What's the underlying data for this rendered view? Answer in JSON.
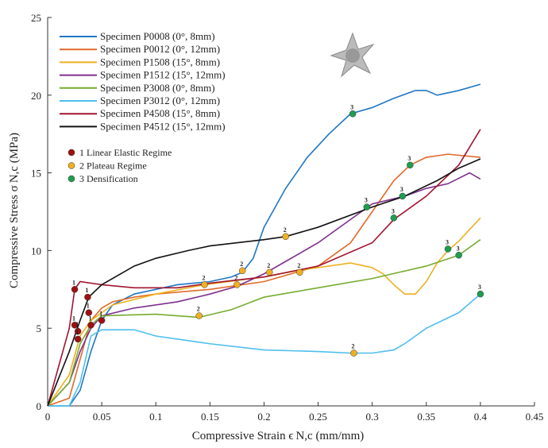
{
  "chart_data": {
    "type": "line",
    "xlabel": "Compressive Strain ϵ N,c (mm/mm)",
    "ylabel": "Compressive Stress σ N,c (MPa)",
    "xlim": [
      0,
      0.45
    ],
    "ylim": [
      0,
      25
    ],
    "xticks": [
      0,
      0.05,
      0.1,
      0.15,
      0.2,
      0.25,
      0.3,
      0.35,
      0.4,
      0.45
    ],
    "yticks": [
      0,
      5,
      10,
      15,
      20,
      25
    ],
    "series": [
      {
        "name": "Specimen P0008 (0°, 8mm)",
        "color": "#1f77c4",
        "x": [
          0,
          0.02,
          0.03,
          0.04,
          0.05,
          0.06,
          0.08,
          0.1,
          0.12,
          0.15,
          0.17,
          0.18,
          0.19,
          0.2,
          0.22,
          0.24,
          0.26,
          0.28,
          0.3,
          0.32,
          0.34,
          0.35,
          0.36,
          0.38,
          0.4
        ],
        "values": [
          0,
          0,
          1,
          3.5,
          5.5,
          6.5,
          7.2,
          7.5,
          7.8,
          8.0,
          8.3,
          8.6,
          9.5,
          11.5,
          14,
          16,
          17.5,
          18.8,
          19.2,
          19.8,
          20.3,
          20.3,
          20.0,
          20.3,
          20.7
        ]
      },
      {
        "name": "Specimen P0012 (0°, 12mm)",
        "color": "#e06a2a",
        "x": [
          0,
          0.02,
          0.03,
          0.04,
          0.05,
          0.06,
          0.08,
          0.1,
          0.15,
          0.2,
          0.25,
          0.28,
          0.3,
          0.32,
          0.335,
          0.35,
          0.37,
          0.4
        ],
        "values": [
          0,
          0.5,
          3,
          5.5,
          6.3,
          6.7,
          7.0,
          7.2,
          7.5,
          8.0,
          9.0,
          10.5,
          12.5,
          14.5,
          15.5,
          16.0,
          16.2,
          16.0
        ]
      },
      {
        "name": "Specimen P1508 (15°, 8mm)",
        "color": "#edb120",
        "x": [
          0,
          0.02,
          0.03,
          0.04,
          0.06,
          0.1,
          0.145,
          0.2,
          0.23,
          0.26,
          0.28,
          0.3,
          0.31,
          0.32,
          0.33,
          0.34,
          0.35,
          0.36,
          0.37,
          0.38,
          0.4
        ],
        "values": [
          0,
          2,
          4.5,
          5.5,
          6.5,
          7.2,
          7.8,
          8.3,
          8.7,
          9.0,
          9.2,
          8.9,
          8.5,
          7.8,
          7.2,
          7.2,
          8.0,
          9.2,
          10.0,
          10.6,
          12.1
        ]
      },
      {
        "name": "Specimen P1512 (15°, 12mm)",
        "color": "#7e2f8e",
        "x": [
          0,
          0.02,
          0.03,
          0.04,
          0.05,
          0.08,
          0.12,
          0.15,
          0.175,
          0.2,
          0.25,
          0.28,
          0.3,
          0.33,
          0.35,
          0.37,
          0.39,
          0.4
        ],
        "values": [
          0,
          1.5,
          3.5,
          5.0,
          5.8,
          6.3,
          6.7,
          7.2,
          7.7,
          8.5,
          10.5,
          12.0,
          13.0,
          13.5,
          14.0,
          14.3,
          15.0,
          14.6
        ]
      },
      {
        "name": "Specimen P3008 (0°, 8mm)",
        "color": "#77ac30",
        "x": [
          0,
          0.02,
          0.03,
          0.04,
          0.05,
          0.1,
          0.14,
          0.17,
          0.2,
          0.25,
          0.3,
          0.35,
          0.38,
          0.4
        ],
        "values": [
          0,
          1.5,
          4.0,
          5.2,
          5.8,
          5.9,
          5.7,
          6.2,
          7.0,
          7.6,
          8.2,
          9.0,
          9.7,
          10.7
        ]
      },
      {
        "name": "Specimen P3012 (0°, 12mm)",
        "color": "#4dbeee",
        "x": [
          0,
          0.02,
          0.03,
          0.04,
          0.05,
          0.08,
          0.1,
          0.15,
          0.2,
          0.25,
          0.28,
          0.3,
          0.32,
          0.33,
          0.35,
          0.38,
          0.4
        ],
        "values": [
          0,
          0,
          1.5,
          4.5,
          4.9,
          4.9,
          4.5,
          4.0,
          3.6,
          3.5,
          3.4,
          3.4,
          3.6,
          4.0,
          5.0,
          6.0,
          7.2
        ]
      },
      {
        "name": "Specimen P4508 (15°, 8mm)",
        "color": "#a2142f",
        "x": [
          0,
          0.02,
          0.025,
          0.03,
          0.05,
          0.08,
          0.12,
          0.15,
          0.2,
          0.25,
          0.3,
          0.32,
          0.35,
          0.38,
          0.4
        ],
        "values": [
          0,
          5,
          7.5,
          8.0,
          7.8,
          7.6,
          7.6,
          7.9,
          8.3,
          9.0,
          10.5,
          12.0,
          13.5,
          15.5,
          17.8
        ]
      },
      {
        "name": "Specimen P4512 (15°, 12mm)",
        "color": "#111111",
        "x": [
          0,
          0.02,
          0.03,
          0.038,
          0.05,
          0.08,
          0.1,
          0.13,
          0.15,
          0.2,
          0.22,
          0.25,
          0.3,
          0.33,
          0.36,
          0.38,
          0.4
        ],
        "values": [
          0,
          3.5,
          5.5,
          7.0,
          7.8,
          9.0,
          9.5,
          10.0,
          10.3,
          10.7,
          10.9,
          11.5,
          12.8,
          13.5,
          14.5,
          15.3,
          15.9
        ]
      }
    ],
    "regimes": [
      {
        "label": "1",
        "name": "Linear Elastic Regime",
        "color": "#a01010",
        "x": [
          0.025,
          0.037,
          0.025,
          0.038,
          0.04,
          0.028,
          0.05,
          0.028
        ],
        "y": [
          7.5,
          7.0,
          5.2,
          6.0,
          5.2,
          4.8,
          5.5,
          4.3
        ]
      },
      {
        "label": "2",
        "name": "Plateau Regime",
        "color": "#f0b020",
        "x": [
          0.14,
          0.145,
          0.175,
          0.18,
          0.205,
          0.22,
          0.233,
          0.283
        ],
        "y": [
          5.8,
          7.8,
          7.8,
          8.7,
          8.6,
          10.9,
          8.6,
          3.4
        ]
      },
      {
        "label": "3",
        "name": "Densification",
        "color": "#1e9e50",
        "x": [
          0.282,
          0.295,
          0.32,
          0.328,
          0.335,
          0.37,
          0.38,
          0.4
        ],
        "y": [
          18.8,
          12.8,
          12.1,
          13.5,
          15.5,
          10.1,
          9.7,
          7.2
        ]
      }
    ]
  }
}
